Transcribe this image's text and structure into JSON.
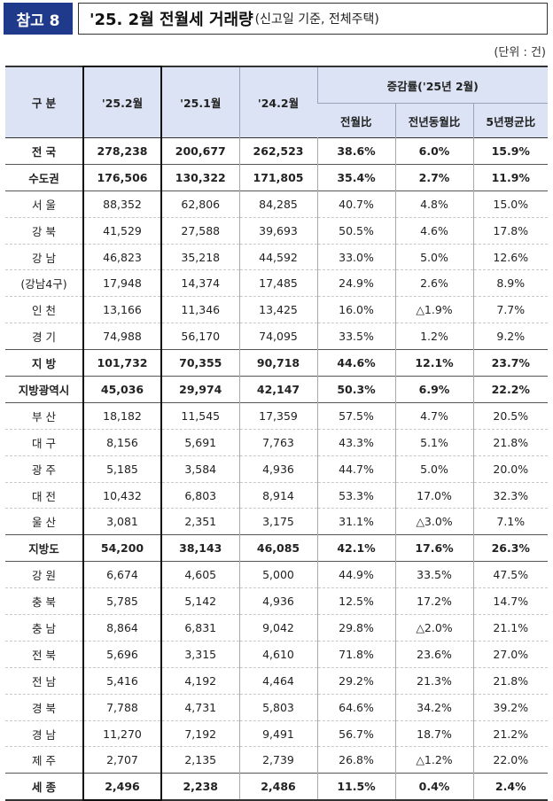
{
  "title": {
    "tag": "참고 8",
    "main": "'25. 2월 전월세 거래량",
    "sub": "(신고일 기준, 전체주택)"
  },
  "unit": "(단위 : 건)",
  "headers": {
    "region": "구  분",
    "c1": "'25.2월",
    "c2": "'25.1월",
    "c3": "'24.2월",
    "growth": "증감률('25년 2월)",
    "g1": "전월比",
    "g2": "전년동월比",
    "g3": "5년평균比"
  },
  "rows": [
    {
      "name": "전  국",
      "v1": "278,238",
      "v2": "200,677",
      "v3": "262,523",
      "r1": "38.6%",
      "r2": "6.0%",
      "r3": "15.9%",
      "bold": true,
      "sep": false
    },
    {
      "name": "수도권",
      "v1": "176,506",
      "v2": "130,322",
      "v3": "171,805",
      "r1": "35.4%",
      "r2": "2.7%",
      "r3": "11.9%",
      "bold": true,
      "sep": true
    },
    {
      "name": "서  울",
      "v1": "88,352",
      "v2": "62,806",
      "v3": "84,285",
      "r1": "40.7%",
      "r2": "4.8%",
      "r3": "15.0%",
      "bold": false,
      "sep": true
    },
    {
      "name": "강  북",
      "v1": "41,529",
      "v2": "27,588",
      "v3": "39,693",
      "r1": "50.5%",
      "r2": "4.6%",
      "r3": "17.8%",
      "bold": false,
      "sep": false
    },
    {
      "name": "강  남",
      "v1": "46,823",
      "v2": "35,218",
      "v3": "44,592",
      "r1": "33.0%",
      "r2": "5.0%",
      "r3": "12.6%",
      "bold": false,
      "sep": false
    },
    {
      "name": "(강남4구)",
      "v1": "17,948",
      "v2": "14,374",
      "v3": "17,485",
      "r1": "24.9%",
      "r2": "2.6%",
      "r3": "8.9%",
      "bold": false,
      "sep": false
    },
    {
      "name": "인  천",
      "v1": "13,166",
      "v2": "11,346",
      "v3": "13,425",
      "r1": "16.0%",
      "r2": "△1.9%",
      "r3": "7.7%",
      "bold": false,
      "sep": false
    },
    {
      "name": "경  기",
      "v1": "74,988",
      "v2": "56,170",
      "v3": "74,095",
      "r1": "33.5%",
      "r2": "1.2%",
      "r3": "9.2%",
      "bold": false,
      "sep": false
    },
    {
      "name": "지  방",
      "v1": "101,732",
      "v2": "70,355",
      "v3": "90,718",
      "r1": "44.6%",
      "r2": "12.1%",
      "r3": "23.7%",
      "bold": true,
      "sep": true
    },
    {
      "name": "지방광역시",
      "v1": "45,036",
      "v2": "29,974",
      "v3": "42,147",
      "r1": "50.3%",
      "r2": "6.9%",
      "r3": "22.2%",
      "bold": true,
      "sep": true
    },
    {
      "name": "부  산",
      "v1": "18,182",
      "v2": "11,545",
      "v3": "17,359",
      "r1": "57.5%",
      "r2": "4.7%",
      "r3": "20.5%",
      "bold": false,
      "sep": true
    },
    {
      "name": "대  구",
      "v1": "8,156",
      "v2": "5,691",
      "v3": "7,763",
      "r1": "43.3%",
      "r2": "5.1%",
      "r3": "21.8%",
      "bold": false,
      "sep": false
    },
    {
      "name": "광  주",
      "v1": "5,185",
      "v2": "3,584",
      "v3": "4,936",
      "r1": "44.7%",
      "r2": "5.0%",
      "r3": "20.0%",
      "bold": false,
      "sep": false
    },
    {
      "name": "대  전",
      "v1": "10,432",
      "v2": "6,803",
      "v3": "8,914",
      "r1": "53.3%",
      "r2": "17.0%",
      "r3": "32.3%",
      "bold": false,
      "sep": false
    },
    {
      "name": "울  산",
      "v1": "3,081",
      "v2": "2,351",
      "v3": "3,175",
      "r1": "31.1%",
      "r2": "△3.0%",
      "r3": "7.1%",
      "bold": false,
      "sep": false
    },
    {
      "name": "지방도",
      "v1": "54,200",
      "v2": "38,143",
      "v3": "46,085",
      "r1": "42.1%",
      "r2": "17.6%",
      "r3": "26.3%",
      "bold": true,
      "sep": true
    },
    {
      "name": "강  원",
      "v1": "6,674",
      "v2": "4,605",
      "v3": "5,000",
      "r1": "44.9%",
      "r2": "33.5%",
      "r3": "47.5%",
      "bold": false,
      "sep": true
    },
    {
      "name": "충  북",
      "v1": "5,785",
      "v2": "5,142",
      "v3": "4,936",
      "r1": "12.5%",
      "r2": "17.2%",
      "r3": "14.7%",
      "bold": false,
      "sep": false
    },
    {
      "name": "충  남",
      "v1": "8,864",
      "v2": "6,831",
      "v3": "9,042",
      "r1": "29.8%",
      "r2": "△2.0%",
      "r3": "21.1%",
      "bold": false,
      "sep": false
    },
    {
      "name": "전  북",
      "v1": "5,696",
      "v2": "3,315",
      "v3": "4,610",
      "r1": "71.8%",
      "r2": "23.6%",
      "r3": "27.0%",
      "bold": false,
      "sep": false
    },
    {
      "name": "전  남",
      "v1": "5,416",
      "v2": "4,192",
      "v3": "4,464",
      "r1": "29.2%",
      "r2": "21.3%",
      "r3": "21.8%",
      "bold": false,
      "sep": false
    },
    {
      "name": "경  북",
      "v1": "7,788",
      "v2": "4,731",
      "v3": "5,803",
      "r1": "64.6%",
      "r2": "34.2%",
      "r3": "39.2%",
      "bold": false,
      "sep": false
    },
    {
      "name": "경  남",
      "v1": "11,270",
      "v2": "7,192",
      "v3": "9,491",
      "r1": "56.7%",
      "r2": "18.7%",
      "r3": "21.2%",
      "bold": false,
      "sep": false
    },
    {
      "name": "제  주",
      "v1": "2,707",
      "v2": "2,135",
      "v3": "2,739",
      "r1": "26.8%",
      "r2": "△1.2%",
      "r3": "22.0%",
      "bold": false,
      "sep": false
    },
    {
      "name": "세  종",
      "v1": "2,496",
      "v2": "2,238",
      "v3": "2,486",
      "r1": "11.5%",
      "r2": "0.4%",
      "r3": "2.4%",
      "bold": true,
      "sep": true
    }
  ]
}
